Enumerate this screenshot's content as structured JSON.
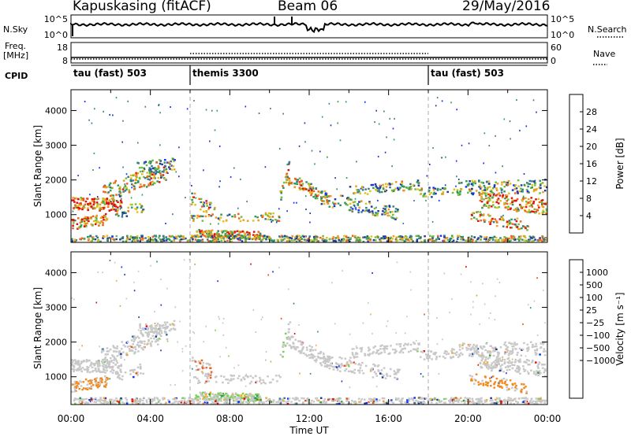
{
  "header": {
    "station": "Kapuskasing (fitACF)",
    "beam": "Beam 06",
    "date": "29/May/2016"
  },
  "side_labels": {
    "nsky": "N.Sky",
    "nsearch": "N.Search",
    "freq": "Freq.",
    "freq_unit": "[MHz]",
    "nave": "Nave",
    "cpid": "CPID"
  },
  "colors": {
    "power": [
      "#1030ff",
      "#203aa0",
      "#3a7a8c",
      "#2f9a5a",
      "#6fbf3a",
      "#e0c020",
      "#ee9a20",
      "#f06020",
      "#e01010"
    ],
    "velocity": [
      "#e01010",
      "#f05018",
      "#f49a30",
      "#f0b040",
      "#c8c8c8",
      "#c8c8c8",
      "#7ccf5a",
      "#3a9a40",
      "#3a7a9a",
      "#203aa0",
      "#1030ff"
    ],
    "gray": "#c8c8c8",
    "grid": "#9a9a9a"
  },
  "chart_data": [
    {
      "type": "line",
      "name": "noise-panel",
      "ylabel_left": "N.Sky",
      "ylabel_right": "N.Search",
      "left_ticks": [
        "10^5",
        "10^0"
      ],
      "right_ticks": [
        "10^5",
        "10^0"
      ]
    },
    {
      "type": "line",
      "name": "freq-nave-panel",
      "left_ticks": [
        "18",
        "8"
      ],
      "right_ticks": [
        "60",
        "0"
      ]
    },
    {
      "type": "table",
      "name": "cpid-panel",
      "segments": [
        {
          "label": "tau (fast) 503",
          "start_hour": 0
        },
        {
          "label": "themis 3300",
          "start_hour": 6
        },
        {
          "label": "tau (fast) 503",
          "start_hour": 18
        }
      ]
    },
    {
      "type": "heatmap",
      "name": "power-panel",
      "ylabel": "Slant Range [km]",
      "yticks": [
        1000,
        2000,
        3000,
        4000
      ],
      "ylim": [
        200,
        4600
      ],
      "xlim": [
        0,
        24
      ],
      "colorbar_label": "Power [dB]",
      "colorbar_ticks": [
        4,
        8,
        12,
        16,
        20,
        24,
        28
      ],
      "colorbar_range": [
        0,
        32
      ]
    },
    {
      "type": "heatmap",
      "name": "velocity-panel",
      "ylabel": "Slant Range [km]",
      "yticks": [
        1000,
        2000,
        3000,
        4000
      ],
      "ylim": [
        200,
        4600
      ],
      "xlim": [
        0,
        24
      ],
      "xlabel": "Time UT",
      "xtick_labels": [
        "00:00",
        "04:00",
        "08:00",
        "12:00",
        "16:00",
        "20:00",
        "00:00"
      ],
      "colorbar_label": "Velocity [m s⁻¹]",
      "colorbar_ticks": [
        "1000",
        "500",
        "100",
        "25",
        "−25",
        "−100",
        "−500",
        "−1000"
      ]
    }
  ]
}
